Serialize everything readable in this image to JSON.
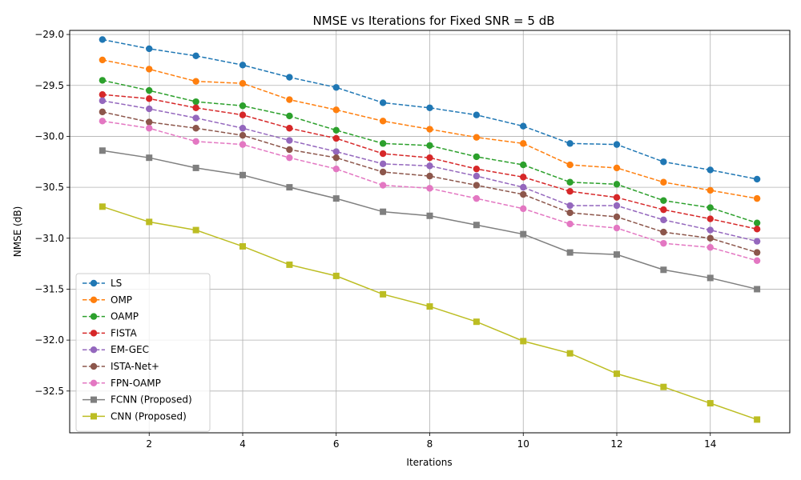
{
  "chart_data": {
    "type": "line",
    "title": "NMSE vs Iterations for Fixed SNR = 5 dB",
    "xlabel": "Iterations",
    "ylabel": "NMSE (dB)",
    "x": [
      1,
      2,
      3,
      4,
      5,
      6,
      7,
      8,
      9,
      10,
      11,
      12,
      13,
      14,
      15
    ],
    "xlim": [
      0.3,
      15.7
    ],
    "ylim": [
      -32.91,
      -28.96
    ],
    "xticks": [
      2,
      4,
      6,
      8,
      10,
      12,
      14
    ],
    "xtick_labels": [
      "2",
      "4",
      "6",
      "8",
      "10",
      "12",
      "14"
    ],
    "yticks": [
      -29.0,
      -29.5,
      -30.0,
      -30.5,
      -31.0,
      -31.5,
      -32.0,
      -32.5
    ],
    "ytick_labels": [
      "−29.0",
      "−29.5",
      "−30.0",
      "−30.5",
      "−31.0",
      "−31.5",
      "−32.0",
      "−32.5"
    ],
    "grid": true,
    "legend_position": "lower-left",
    "series": [
      {
        "name": "LS",
        "color": "#1f77b4",
        "marker": "circle",
        "dashed": true,
        "values": [
          -29.05,
          -29.14,
          -29.21,
          -29.3,
          -29.42,
          -29.52,
          -29.67,
          -29.72,
          -29.79,
          -29.9,
          -30.07,
          -30.08,
          -30.25,
          -30.33,
          -30.42
        ]
      },
      {
        "name": "OMP",
        "color": "#ff7f0e",
        "marker": "circle",
        "dashed": true,
        "values": [
          -29.25,
          -29.34,
          -29.46,
          -29.48,
          -29.64,
          -29.74,
          -29.85,
          -29.93,
          -30.01,
          -30.07,
          -30.28,
          -30.31,
          -30.45,
          -30.53,
          -30.61
        ]
      },
      {
        "name": "OAMP",
        "color": "#2ca02c",
        "marker": "circle",
        "dashed": true,
        "values": [
          -29.45,
          -29.55,
          -29.66,
          -29.7,
          -29.8,
          -29.94,
          -30.07,
          -30.09,
          -30.2,
          -30.28,
          -30.45,
          -30.47,
          -30.63,
          -30.7,
          -30.85
        ]
      },
      {
        "name": "FISTA",
        "color": "#d62728",
        "marker": "circle",
        "dashed": true,
        "values": [
          -29.59,
          -29.63,
          -29.72,
          -29.79,
          -29.92,
          -30.02,
          -30.17,
          -30.21,
          -30.32,
          -30.4,
          -30.54,
          -30.6,
          -30.72,
          -30.81,
          -30.91
        ]
      },
      {
        "name": "EM-GEC",
        "color": "#9467bd",
        "marker": "circle",
        "dashed": true,
        "values": [
          -29.65,
          -29.73,
          -29.82,
          -29.92,
          -30.04,
          -30.15,
          -30.27,
          -30.29,
          -30.39,
          -30.5,
          -30.68,
          -30.68,
          -30.82,
          -30.92,
          -31.03
        ]
      },
      {
        "name": "ISTA-Net+",
        "color": "#8c564b",
        "marker": "circle",
        "dashed": true,
        "values": [
          -29.76,
          -29.86,
          -29.92,
          -29.99,
          -30.13,
          -30.21,
          -30.35,
          -30.39,
          -30.48,
          -30.57,
          -30.75,
          -30.79,
          -30.94,
          -31.0,
          -31.14
        ]
      },
      {
        "name": "FPN-OAMP",
        "color": "#e377c2",
        "marker": "circle",
        "dashed": true,
        "values": [
          -29.85,
          -29.92,
          -30.05,
          -30.08,
          -30.21,
          -30.32,
          -30.48,
          -30.51,
          -30.61,
          -30.71,
          -30.86,
          -30.9,
          -31.05,
          -31.09,
          -31.22
        ]
      },
      {
        "name": "FCNN (Proposed)",
        "color": "#7f7f7f",
        "marker": "square",
        "dashed": false,
        "values": [
          -30.14,
          -30.21,
          -30.31,
          -30.38,
          -30.5,
          -30.61,
          -30.74,
          -30.78,
          -30.87,
          -30.96,
          -31.14,
          -31.16,
          -31.31,
          -31.39,
          -31.5
        ]
      },
      {
        "name": "CNN (Proposed)",
        "color": "#bcbd22",
        "marker": "square",
        "dashed": false,
        "values": [
          -30.69,
          -30.84,
          -30.92,
          -31.08,
          -31.26,
          -31.37,
          -31.55,
          -31.67,
          -31.82,
          -32.01,
          -32.13,
          -32.33,
          -32.46,
          -32.62,
          -32.78
        ]
      }
    ]
  }
}
